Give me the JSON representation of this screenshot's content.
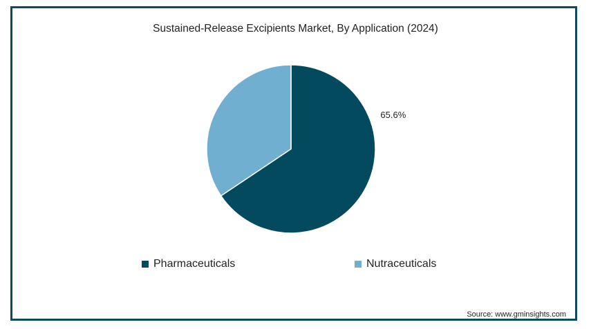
{
  "chart_data": {
    "type": "pie",
    "title": "Sustained-Release Excipients Market, By Application (2024)",
    "slices": [
      {
        "name": "Pharmaceuticals",
        "value": 65.6,
        "label": "65.6%",
        "color": "#034a5e"
      },
      {
        "name": "Nutraceuticals",
        "value": 34.4,
        "label": "",
        "color": "#70afd0"
      }
    ],
    "legend_position": "bottom"
  },
  "source": "Source: www.gminsights.com"
}
